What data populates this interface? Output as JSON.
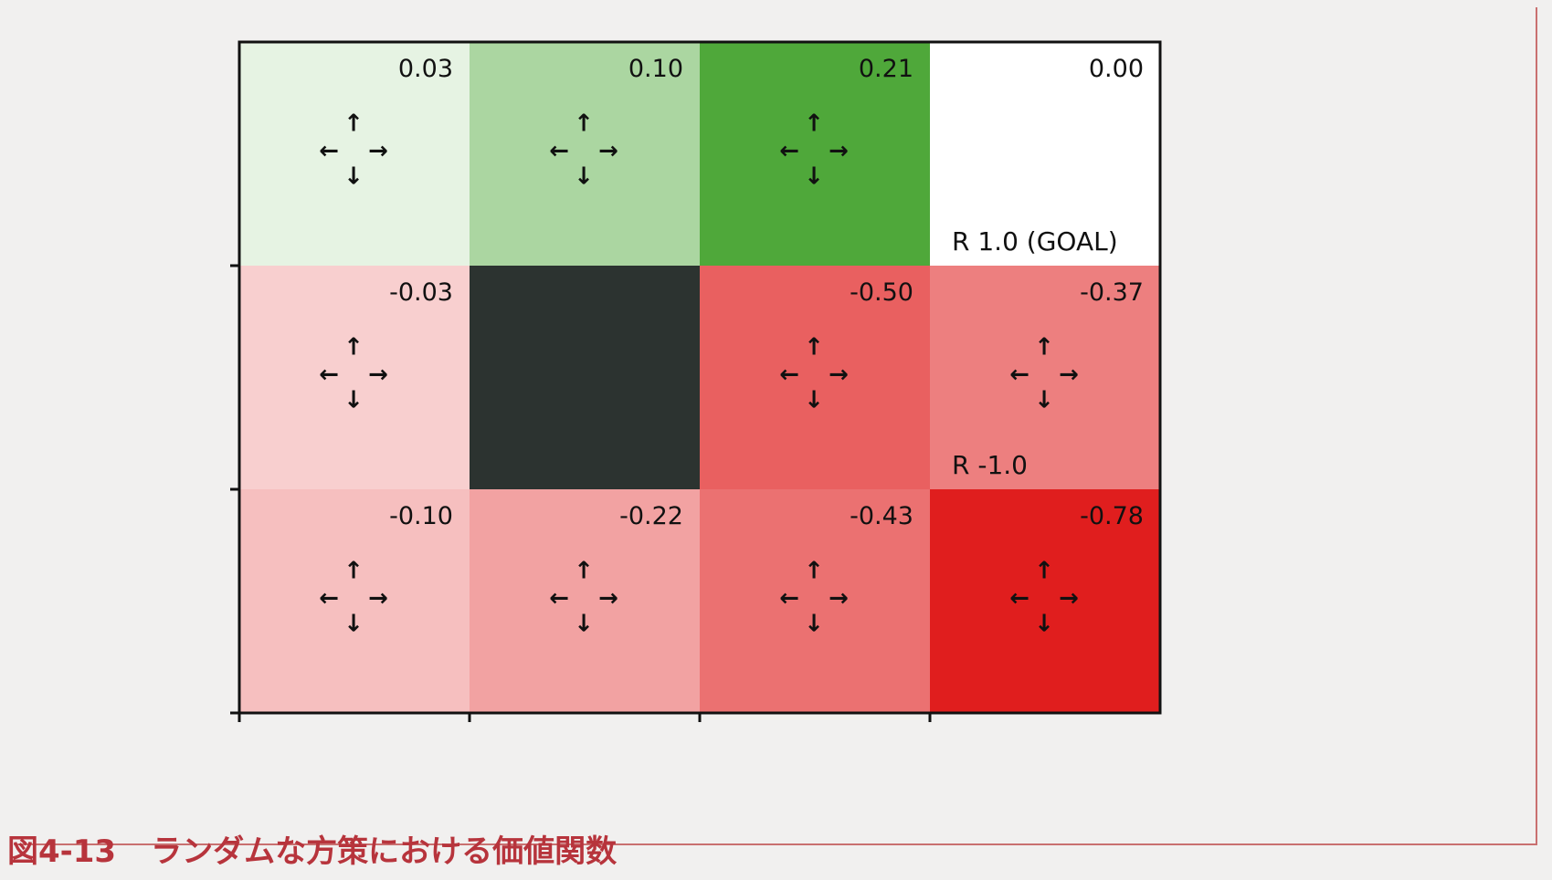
{
  "chart_data": {
    "type": "heatmap",
    "title": "",
    "xlabel": "",
    "ylabel": "",
    "rows": 3,
    "cols": 4,
    "values": [
      [
        0.03,
        0.1,
        0.21,
        0.0
      ],
      [
        -0.03,
        null,
        -0.5,
        -0.37
      ],
      [
        -0.1,
        -0.22,
        -0.43,
        -0.78
      ]
    ],
    "value_labels": [
      [
        "0.03",
        "0.10",
        "0.21",
        "0.00"
      ],
      [
        "-0.03",
        "",
        "-0.50",
        "-0.37"
      ],
      [
        "-0.10",
        "-0.22",
        "-0.43",
        "-0.78"
      ]
    ],
    "wall_cell": [
      1,
      1
    ],
    "annotations": [
      {
        "row": 0,
        "col": 3,
        "text": "R 1.0 (GOAL)"
      },
      {
        "row": 1,
        "col": 3,
        "text": "R -1.0"
      }
    ],
    "policy_arrows": [
      "↑",
      "←",
      "→",
      "↓"
    ],
    "colors": {
      "positive": "#4fa83a",
      "negative": "#e01e1e",
      "wall": "#2c3330",
      "zero": "#ffffff"
    },
    "grid": false
  },
  "caption": {
    "number": "図4-13",
    "text": "ランダムな方策における価値関数"
  }
}
